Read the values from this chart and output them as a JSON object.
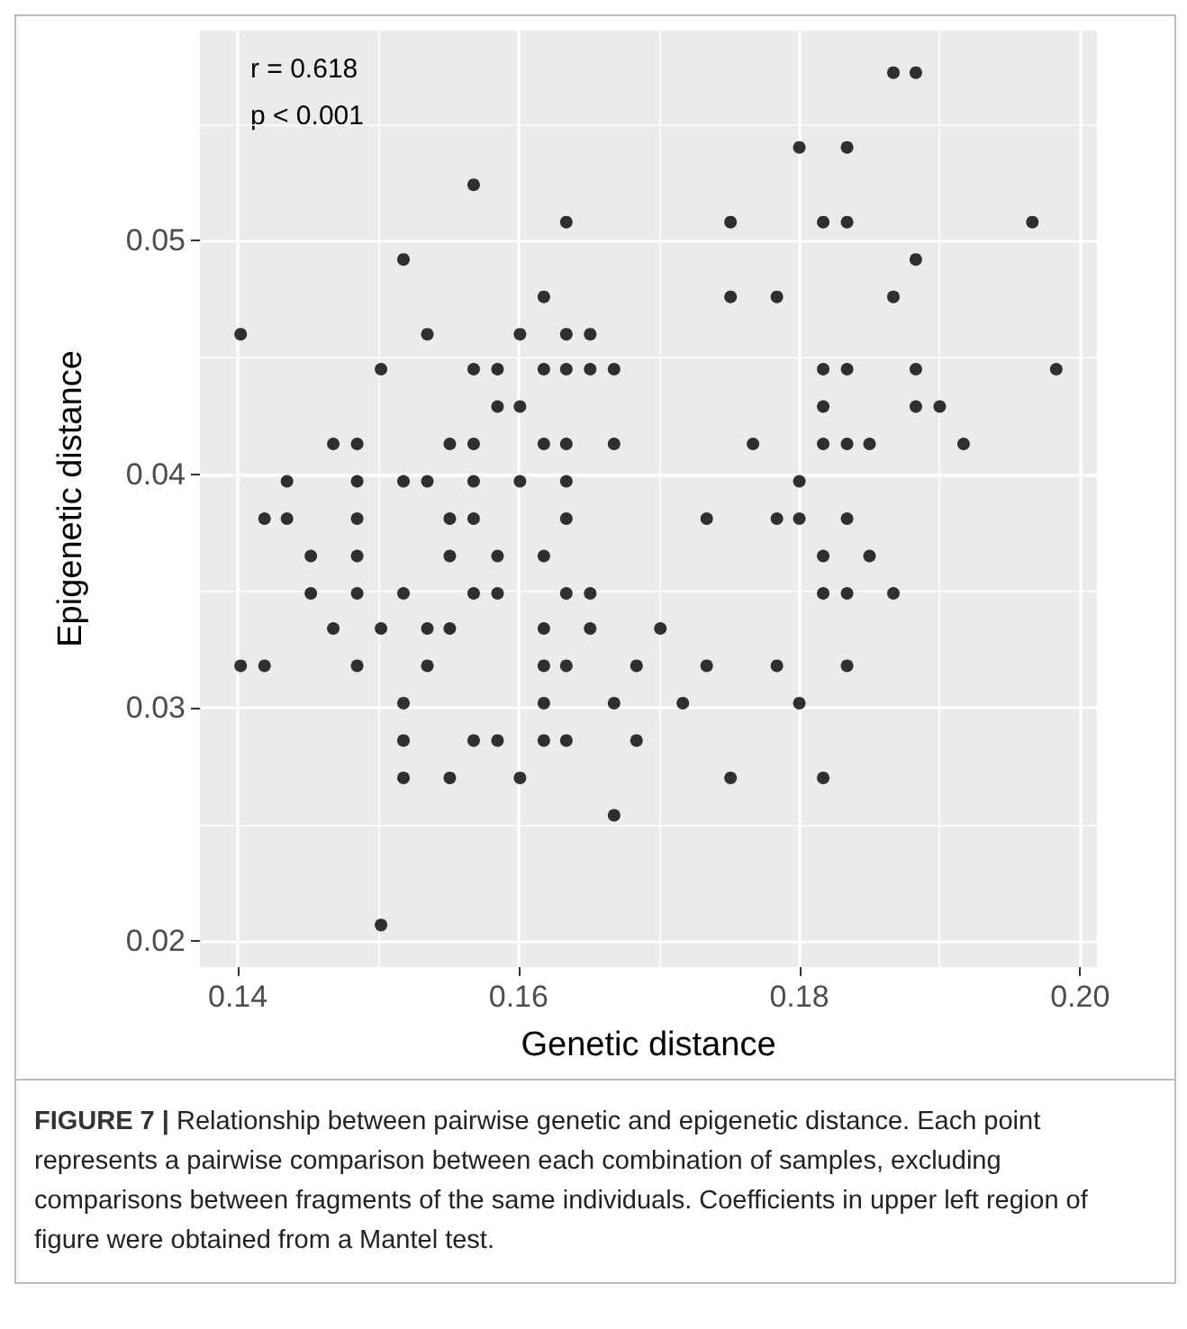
{
  "chart_data": {
    "type": "scatter",
    "xlabel": "Genetic distance",
    "ylabel": "Epigenetic distance",
    "x": [
      0.1867,
      0.1883,
      0.18,
      0.1834,
      0.1568,
      0.1634,
      0.1751,
      0.1817,
      0.1834,
      0.1966,
      0.1518,
      0.1883,
      0.1618,
      0.1751,
      0.1784,
      0.1867,
      0.1402,
      0.1535,
      0.1601,
      0.1634,
      0.1651,
      0.1502,
      0.1568,
      0.1585,
      0.1618,
      0.1634,
      0.1651,
      0.1668,
      0.1817,
      0.1834,
      0.1883,
      0.1983,
      0.1585,
      0.1601,
      0.1817,
      0.1883,
      0.19,
      0.1468,
      0.1485,
      0.1551,
      0.1568,
      0.1618,
      0.1634,
      0.1668,
      0.1767,
      0.1817,
      0.1834,
      0.185,
      0.1917,
      0.1435,
      0.1485,
      0.1518,
      0.1535,
      0.1568,
      0.1601,
      0.1634,
      0.18,
      0.1419,
      0.1435,
      0.1485,
      0.1551,
      0.1568,
      0.1634,
      0.1734,
      0.1784,
      0.18,
      0.1834,
      0.1452,
      0.1485,
      0.1551,
      0.1585,
      0.1618,
      0.1817,
      0.185,
      0.1452,
      0.1485,
      0.1518,
      0.1568,
      0.1585,
      0.1634,
      0.1651,
      0.1817,
      0.1834,
      0.1867,
      0.1468,
      0.1502,
      0.1535,
      0.1551,
      0.1618,
      0.1651,
      0.1701,
      0.1402,
      0.1419,
      0.1485,
      0.1535,
      0.1618,
      0.1634,
      0.1684,
      0.1734,
      0.1784,
      0.1834,
      0.1518,
      0.1618,
      0.1668,
      0.1717,
      0.18,
      0.1518,
      0.1568,
      0.1585,
      0.1618,
      0.1634,
      0.1684,
      0.1518,
      0.1551,
      0.1601,
      0.1751,
      0.1817,
      0.1668,
      0.1502
    ],
    "values": [
      0.0572,
      0.0572,
      0.054,
      0.054,
      0.0524,
      0.0508,
      0.0508,
      0.0508,
      0.0508,
      0.0508,
      0.0492,
      0.0492,
      0.0476,
      0.0476,
      0.0476,
      0.0476,
      0.046,
      0.046,
      0.046,
      0.046,
      0.046,
      0.0445,
      0.0445,
      0.0445,
      0.0445,
      0.0445,
      0.0445,
      0.0445,
      0.0445,
      0.0445,
      0.0445,
      0.0445,
      0.0429,
      0.0429,
      0.0429,
      0.0429,
      0.0429,
      0.0413,
      0.0413,
      0.0413,
      0.0413,
      0.0413,
      0.0413,
      0.0413,
      0.0413,
      0.0413,
      0.0413,
      0.0413,
      0.0413,
      0.0397,
      0.0397,
      0.0397,
      0.0397,
      0.0397,
      0.0397,
      0.0397,
      0.0397,
      0.0381,
      0.0381,
      0.0381,
      0.0381,
      0.0381,
      0.0381,
      0.0381,
      0.0381,
      0.0381,
      0.0381,
      0.0365,
      0.0365,
      0.0365,
      0.0365,
      0.0365,
      0.0365,
      0.0365,
      0.0349,
      0.0349,
      0.0349,
      0.0349,
      0.0349,
      0.0349,
      0.0349,
      0.0349,
      0.0349,
      0.0349,
      0.0334,
      0.0334,
      0.0334,
      0.0334,
      0.0334,
      0.0334,
      0.0334,
      0.0318,
      0.0318,
      0.0318,
      0.0318,
      0.0318,
      0.0318,
      0.0318,
      0.0318,
      0.0318,
      0.0318,
      0.0302,
      0.0302,
      0.0302,
      0.0302,
      0.0302,
      0.0286,
      0.0286,
      0.0286,
      0.0286,
      0.0286,
      0.0286,
      0.027,
      0.027,
      0.027,
      0.027,
      0.027,
      0.0254,
      0.0207
    ],
    "color": "#000000",
    "marker": "circle",
    "xlim": [
      0.1373,
      0.2012
    ],
    "ylim": [
      0.0189,
      0.059
    ],
    "xticks": [
      0.14,
      {
        "value": 0.15,
        "label": null
      },
      0.16,
      {
        "value": 0.17,
        "label": null
      },
      0.18,
      {
        "value": 0.19,
        "label": null
      },
      {
        "value": 0.2,
        "label": "0.20"
      }
    ],
    "yticks": [
      {
        "value": 0.02,
        "label": "0.02"
      },
      {
        "value": 0.025,
        "label": null
      },
      0.03,
      {
        "value": 0.035,
        "label": null
      },
      0.04,
      {
        "value": 0.045,
        "label": null
      },
      0.05,
      {
        "value": 0.055,
        "label": null
      }
    ],
    "grid": true,
    "annotations": [
      "r = 0.618",
      "p < 0.001",
      "FIGURE 7 | Relationship between pairwise genetic and epigenetic distance. Each point represents a pairwise comparison between each combination of samples, excluding comparisons between fragments of the same individuals. Coefficients in upper left region of figure were obtained from a Mantel test."
    ]
  }
}
